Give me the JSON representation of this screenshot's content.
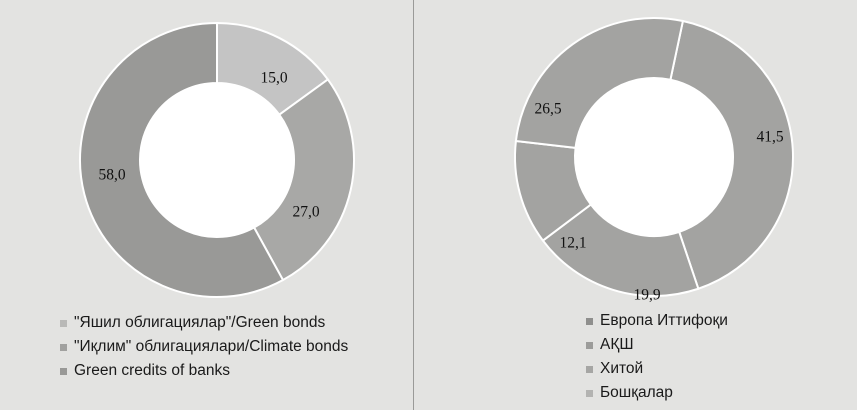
{
  "chart_data": [
    {
      "type": "pie",
      "donut": true,
      "categories": [
        "\"Яшил облигациялар\"/Green bonds",
        "\"Иқлим\" облигациялари/Climate bonds",
        "Green credits of banks"
      ],
      "values": [
        15.0,
        27.0,
        58.0
      ],
      "value_labels": [
        "15,0",
        "27,0",
        "58,0"
      ],
      "colors": [
        "#c4c4c4",
        "#a8a8a6",
        "#999997"
      ],
      "legend_position": "bottom"
    },
    {
      "type": "pie",
      "donut": true,
      "categories": [
        "Европа Иттифоқи",
        "АҚШ",
        "Хитой",
        "Бошқалар"
      ],
      "values": [
        41.5,
        19.9,
        12.1,
        26.5
      ],
      "value_labels": [
        "41,5",
        "19,9",
        "12,1",
        "26,5"
      ],
      "colors": [
        "#a3a3a1",
        "#a3a3a1",
        "#a3a3a1",
        "#a3a3a1"
      ],
      "legend_position": "bottom"
    }
  ],
  "legend_swatches": {
    "left": [
      "#b9b9b7",
      "#a1a19f",
      "#999997"
    ],
    "right": [
      "#8f8f8d",
      "#9c9c9a",
      "#a6a6a4",
      "#b3b3b1"
    ]
  }
}
